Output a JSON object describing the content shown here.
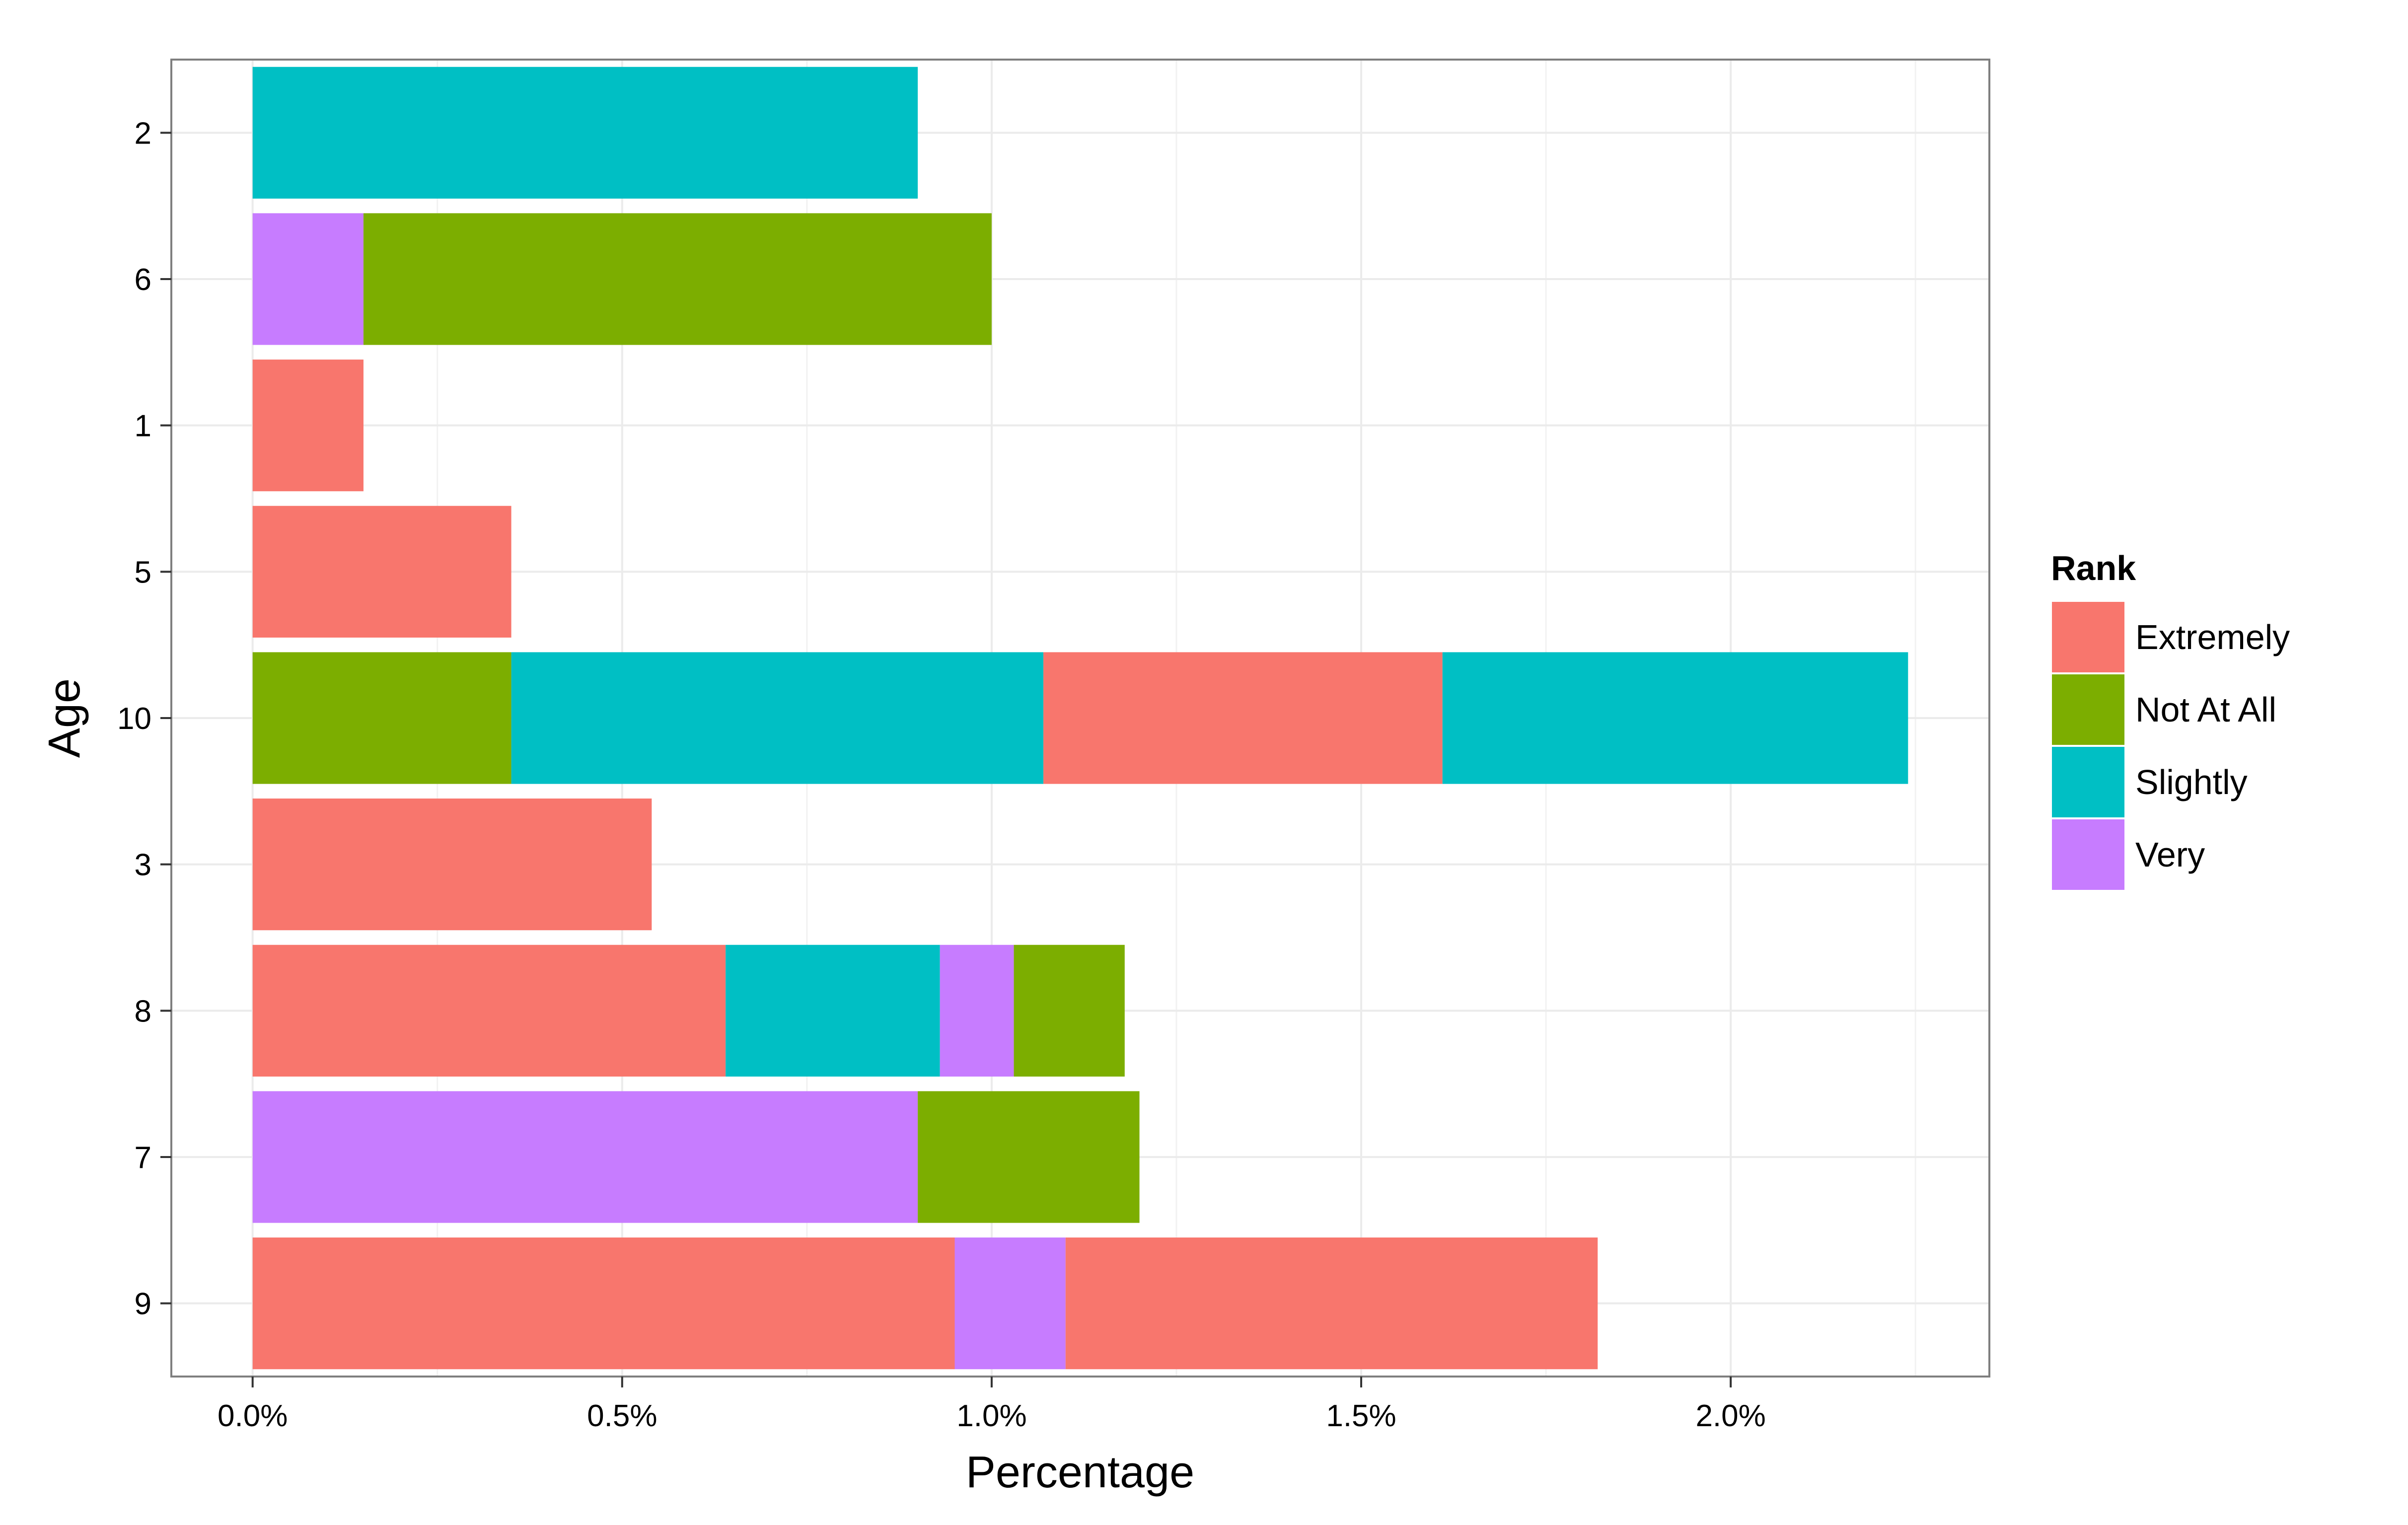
{
  "chart_data": {
    "type": "bar",
    "orientation": "horizontal",
    "stacked": true,
    "title": "",
    "xlabel": "Percentage",
    "ylabel": "Age",
    "xlim": [
      -0.11,
      2.35
    ],
    "x_ticks": [
      0.0,
      0.5,
      1.0,
      1.5,
      2.0
    ],
    "x_tick_labels": [
      "0.0%",
      "0.5%",
      "1.0%",
      "1.5%",
      "2.0%"
    ],
    "categories": [
      "2",
      "6",
      "1",
      "5",
      "10",
      "3",
      "8",
      "7",
      "9"
    ],
    "grid": true,
    "legend": {
      "title": "Rank",
      "position": "right",
      "entries": [
        {
          "label": "Extremely",
          "color": "#F8766D"
        },
        {
          "label": "Not At All",
          "color": "#7CAE00"
        },
        {
          "label": "Slightly",
          "color": "#00BFC4"
        },
        {
          "label": "Very",
          "color": "#C77CFF"
        }
      ]
    },
    "bars": [
      {
        "category": "2",
        "segments": [
          {
            "rank": "Slightly",
            "value": 0.9
          }
        ]
      },
      {
        "category": "6",
        "segments": [
          {
            "rank": "Very",
            "value": 0.15
          },
          {
            "rank": "Not At All",
            "value": 0.85
          }
        ]
      },
      {
        "category": "1",
        "segments": [
          {
            "rank": "Extremely",
            "value": 0.15
          }
        ]
      },
      {
        "category": "5",
        "segments": [
          {
            "rank": "Extremely",
            "value": 0.35
          }
        ]
      },
      {
        "category": "10",
        "segments": [
          {
            "rank": "Not At All",
            "value": 0.35
          },
          {
            "rank": "Slightly",
            "value": 0.72
          },
          {
            "rank": "Extremely",
            "value": 0.54
          },
          {
            "rank": "Slightly",
            "value": 0.63
          }
        ]
      },
      {
        "category": "3",
        "segments": [
          {
            "rank": "Extremely",
            "value": 0.54
          }
        ]
      },
      {
        "category": "8",
        "segments": [
          {
            "rank": "Extremely",
            "value": 0.64
          },
          {
            "rank": "Slightly",
            "value": 0.29
          },
          {
            "rank": "Very",
            "value": 0.1
          },
          {
            "rank": "Not At All",
            "value": 0.15
          }
        ]
      },
      {
        "category": "7",
        "segments": [
          {
            "rank": "Very",
            "value": 0.9
          },
          {
            "rank": "Not At All",
            "value": 0.3
          }
        ]
      },
      {
        "category": "9",
        "segments": [
          {
            "rank": "Extremely",
            "value": 0.95
          },
          {
            "rank": "Very",
            "value": 0.15
          },
          {
            "rank": "Extremely",
            "value": 0.72
          }
        ]
      }
    ]
  }
}
